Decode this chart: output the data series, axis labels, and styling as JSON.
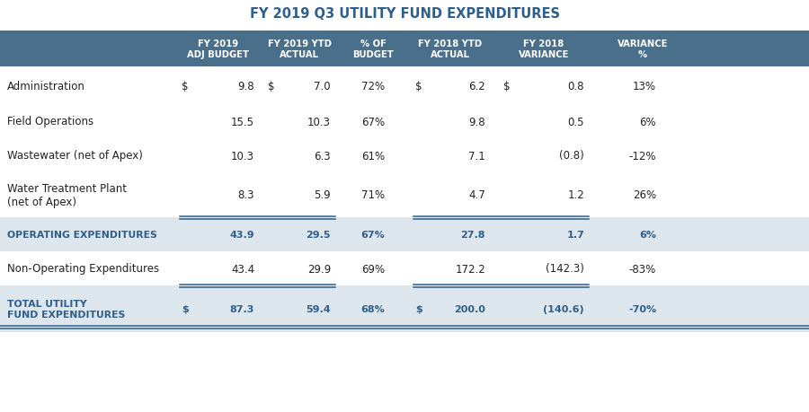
{
  "title": "FY 2019 Q3 UTILITY FUND EXPENDITURES",
  "header_bg": "#4a6f8a",
  "header_text": "#ffffff",
  "subtotal_bg": "#dde6ed",
  "blue_text": "#2e5f8a",
  "dark_text": "#222222",
  "rows": [
    {
      "label": "Administration",
      "show_dollar_budget": true,
      "show_dollar_ytd": true,
      "show_dollar_fy18ytd": true,
      "show_dollar_fy18var": true,
      "values": [
        "9.8",
        "7.0",
        "72%",
        "6.2",
        "0.8",
        "13%"
      ],
      "style": "normal"
    },
    {
      "label": "Field Operations",
      "show_dollar_budget": false,
      "show_dollar_ytd": false,
      "show_dollar_fy18ytd": false,
      "show_dollar_fy18var": false,
      "values": [
        "15.5",
        "10.3",
        "67%",
        "9.8",
        "0.5",
        "6%"
      ],
      "style": "normal"
    },
    {
      "label": "Wastewater (net of Apex)",
      "show_dollar_budget": false,
      "show_dollar_ytd": false,
      "show_dollar_fy18ytd": false,
      "show_dollar_fy18var": false,
      "values": [
        "10.3",
        "6.3",
        "61%",
        "7.1",
        "(0.8)",
        "-12%"
      ],
      "style": "normal"
    },
    {
      "label": "Water Treatment Plant\n(net of Apex)",
      "show_dollar_budget": false,
      "show_dollar_ytd": false,
      "show_dollar_fy18ytd": false,
      "show_dollar_fy18var": false,
      "values": [
        "8.3",
        "5.9",
        "71%",
        "4.7",
        "1.2",
        "26%"
      ],
      "style": "normal"
    },
    {
      "label": "OPERATING EXPENDITURES",
      "show_dollar_budget": false,
      "show_dollar_ytd": false,
      "show_dollar_fy18ytd": false,
      "show_dollar_fy18var": false,
      "values": [
        "43.9",
        "29.5",
        "67%",
        "27.8",
        "1.7",
        "6%"
      ],
      "style": "subtotal",
      "line_above": true
    },
    {
      "label": "Non-Operating Expenditures",
      "show_dollar_budget": false,
      "show_dollar_ytd": false,
      "show_dollar_fy18ytd": false,
      "show_dollar_fy18var": false,
      "values": [
        "43.4",
        "29.9",
        "69%",
        "172.2",
        "(142.3)",
        "-83%"
      ],
      "style": "normal"
    },
    {
      "label": "TOTAL UTILITY\nFUND EXPENDITURES",
      "show_dollar_budget": true,
      "show_dollar_ytd": false,
      "show_dollar_fy18ytd": true,
      "show_dollar_fy18var": false,
      "values": [
        "87.3",
        "59.4",
        "68%",
        "200.0",
        "(140.6)",
        "-70%"
      ],
      "style": "total",
      "line_above": true
    }
  ],
  "header_labels": [
    "FY 2019\nADJ BUDGET",
    "FY 2019 YTD\nACTUAL",
    "% OF\nBUDGET",
    "FY 2018 YTD\nACTUAL",
    "FY 2018\nVARIANCE",
    "VARIANCE\n%"
  ]
}
